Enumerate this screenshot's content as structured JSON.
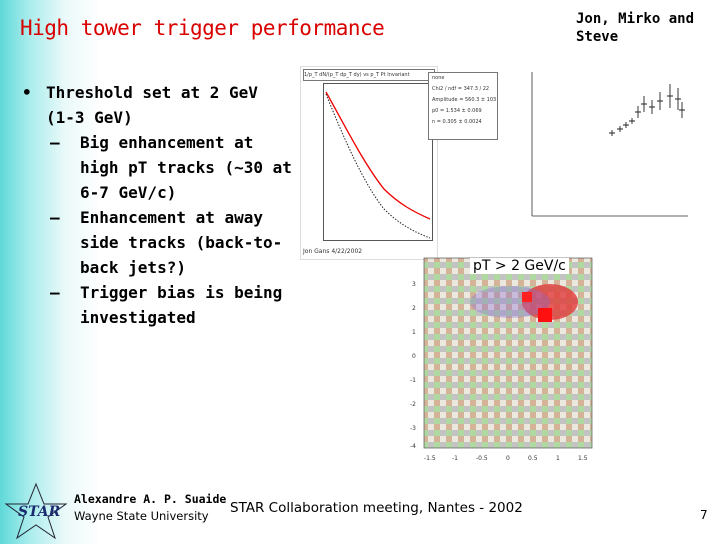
{
  "slide": {
    "title": "High tower trigger performance",
    "authors": "Jon, Mirko and Steve",
    "bullets": [
      {
        "text": "Threshold set at 2 GeV (1-3 GeV)",
        "subs": [
          "Big enhancement at high pT tracks (~30 at 6-7 GeV/c)",
          "Enhancement at away side tracks (back-to-back jets?)",
          "Trigger bias is being investigated"
        ]
      }
    ]
  },
  "figures": {
    "heatmap_label": "pT > 2 GeV/c",
    "plot1_header": "1/p_T dN/(p_T dp_T dy) vs p_T  Pt Invariant",
    "plot1_stats": [
      "none",
      "Chi2 / ndf = 347.3 / 22",
      "Amplitude = 560.3 ± 103",
      "p0 = 1.534 ± 0.069",
      "n = 0.305 ± 0.0024"
    ],
    "plot1_footer": "Jon Gans  4/22/2002",
    "heatmap_xticks": [
      "-1.5",
      "-1",
      "-0.5",
      "0",
      "0.5",
      "1",
      "1.5"
    ],
    "heatmap_yticks": [
      "3",
      "2",
      "1",
      "0",
      "-1",
      "-2",
      "-3",
      "-4"
    ]
  },
  "footer": {
    "logo_text": "STAR",
    "presenter": "Alexandre A. P. Suaide",
    "institution": "Wayne State University",
    "meeting": "STAR Collaboration meeting, Nantes - 2002",
    "page_number": "7"
  }
}
